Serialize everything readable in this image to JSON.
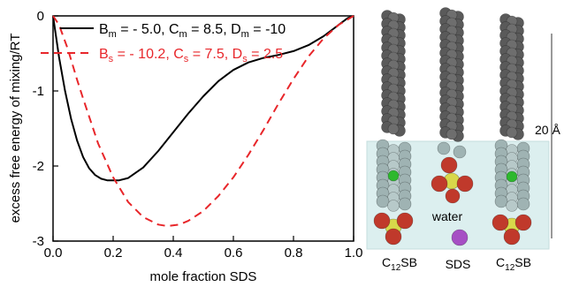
{
  "chart_data": {
    "type": "line",
    "xlabel": "mole fraction SDS",
    "ylabel": "excess free energy of mixing/RT",
    "xlim": [
      0.0,
      1.0
    ],
    "ylim": [
      -3,
      0
    ],
    "x_ticks": [
      "0.0",
      "0.2",
      "0.4",
      "0.6",
      "0.8",
      "1.0"
    ],
    "y_ticks": [
      "0",
      "-1",
      "-2",
      "-3"
    ],
    "grid": false,
    "legend_position": "top-right",
    "series": [
      {
        "name": "B_m = - 5.0, C_m = 8.5, D_m = -10",
        "legend": {
          "B": "B",
          "Bsub": "m",
          "Bval": " = - 5.0, ",
          "C": "C",
          "Csub": "m",
          "Cval": " = 8.5, ",
          "D": "D",
          "Dsub": "m",
          "Dval": " = -10"
        },
        "color": "#000000",
        "dash": "solid",
        "points": [
          [
            0.0,
            0.0
          ],
          [
            0.02,
            -0.55
          ],
          [
            0.04,
            -1.0
          ],
          [
            0.06,
            -1.37
          ],
          [
            0.08,
            -1.66
          ],
          [
            0.1,
            -1.88
          ],
          [
            0.12,
            -2.03
          ],
          [
            0.14,
            -2.12
          ],
          [
            0.16,
            -2.17
          ],
          [
            0.18,
            -2.19
          ],
          [
            0.2,
            -2.19
          ],
          [
            0.22,
            -2.19
          ],
          [
            0.25,
            -2.16
          ],
          [
            0.3,
            -2.02
          ],
          [
            0.35,
            -1.8
          ],
          [
            0.4,
            -1.55
          ],
          [
            0.45,
            -1.3
          ],
          [
            0.5,
            -1.07
          ],
          [
            0.55,
            -0.87
          ],
          [
            0.6,
            -0.72
          ],
          [
            0.65,
            -0.62
          ],
          [
            0.7,
            -0.56
          ],
          [
            0.75,
            -0.52
          ],
          [
            0.8,
            -0.47
          ],
          [
            0.85,
            -0.39
          ],
          [
            0.9,
            -0.27
          ],
          [
            0.95,
            -0.12
          ],
          [
            0.98,
            -0.03
          ],
          [
            1.0,
            0.0
          ]
        ]
      },
      {
        "name": "B_s = - 10.2, C_s = 7.5, D_s = 2.5",
        "legend": {
          "B": "B",
          "Bsub": "s",
          "Bval": " = - 10.2, ",
          "C": "C",
          "Csub": "s",
          "Cval": " = 7.5, ",
          "D": "D",
          "Dsub": "s",
          "Dval": " = 2.5"
        },
        "color": "#e8262a",
        "dash": "dashed",
        "points": [
          [
            0.0,
            0.0
          ],
          [
            0.02,
            -0.12
          ],
          [
            0.05,
            -0.45
          ],
          [
            0.08,
            -0.85
          ],
          [
            0.1,
            -1.1
          ],
          [
            0.15,
            -1.7
          ],
          [
            0.2,
            -2.15
          ],
          [
            0.25,
            -2.48
          ],
          [
            0.3,
            -2.68
          ],
          [
            0.35,
            -2.78
          ],
          [
            0.38,
            -2.8
          ],
          [
            0.42,
            -2.78
          ],
          [
            0.45,
            -2.73
          ],
          [
            0.5,
            -2.6
          ],
          [
            0.55,
            -2.4
          ],
          [
            0.6,
            -2.15
          ],
          [
            0.65,
            -1.85
          ],
          [
            0.7,
            -1.52
          ],
          [
            0.75,
            -1.17
          ],
          [
            0.8,
            -0.84
          ],
          [
            0.85,
            -0.54
          ],
          [
            0.9,
            -0.3
          ],
          [
            0.95,
            -0.12
          ],
          [
            1.0,
            0.0
          ]
        ]
      }
    ]
  },
  "illustration": {
    "scale_label": "20 Å",
    "molecules": [
      {
        "label": "C",
        "label_sub": "12",
        "label_rest": "SB"
      },
      {
        "label": "SDS",
        "label_sub": "",
        "label_rest": ""
      },
      {
        "label": "C",
        "label_sub": "12",
        "label_rest": "SB"
      }
    ],
    "water_label": "water",
    "colors": {
      "water_box": "#dcefef",
      "carbon": "#5a5a5a",
      "headgroup_carbon": "#9fb3b3",
      "nitrogen": "#2db82d",
      "sulfur": "#d8d84a",
      "oxygen": "#c0392b",
      "sodium": "#a64fc4"
    }
  }
}
